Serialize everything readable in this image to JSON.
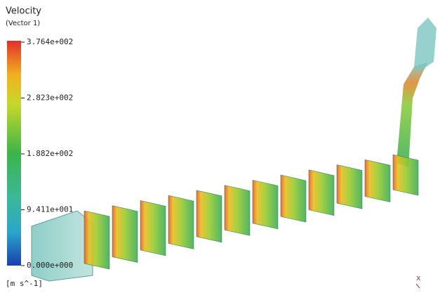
{
  "legend": {
    "title": "Velocity",
    "subtitle": "(Vector 1)",
    "ticks": [
      "3.764e+002",
      "2.823e+002",
      "1.882e+002",
      "9.411e+001",
      "0.000e+000"
    ],
    "unit": "[m s^-1]"
  },
  "axis_label": "x"
}
